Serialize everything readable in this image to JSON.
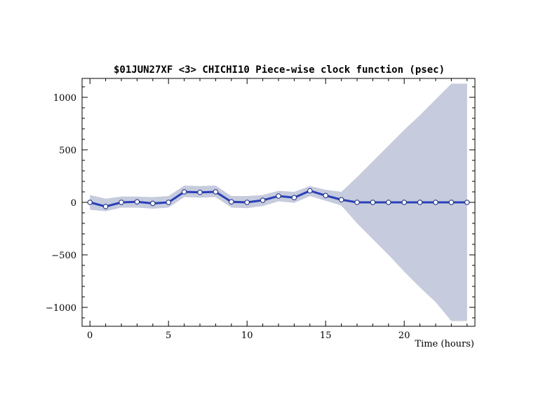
{
  "chart_data": {
    "type": "line",
    "title": "$01JUN27XF <3>  CHICHI10  Piece-wise clock function (psec)",
    "xlabel": "Time (hours)",
    "ylabel": "",
    "xlim": [
      -0.5,
      24.5
    ],
    "ylim": [
      -1180,
      1180
    ],
    "x_ticks": [
      0,
      5,
      10,
      15,
      20
    ],
    "y_ticks": [
      -1000,
      -500,
      0,
      500,
      1000
    ],
    "x_ticks_labels": [
      "0",
      "5",
      "10",
      "15",
      "20"
    ],
    "y_ticks_labels": [
      "−1000",
      "−500",
      "0",
      "500",
      "1000"
    ],
    "grid": false,
    "legend": "none",
    "colors": {
      "line": "#2a40b8",
      "band": "#c6cbdd",
      "marker_fill": "#ffffff"
    },
    "series": [
      {
        "x": [
          0,
          1,
          2,
          3,
          4,
          5,
          6,
          7,
          8,
          9,
          10,
          11,
          12,
          13,
          14,
          15,
          16,
          17,
          18,
          19,
          20,
          21,
          22,
          23,
          24
        ],
        "y": [
          0,
          -40,
          0,
          5,
          -10,
          0,
          100,
          95,
          100,
          5,
          0,
          20,
          60,
          45,
          110,
          65,
          25,
          0,
          0,
          0,
          0,
          0,
          0,
          0,
          0
        ],
        "band_upper": [
          70,
          35,
          55,
          55,
          50,
          60,
          160,
          155,
          160,
          60,
          60,
          70,
          110,
          100,
          155,
          120,
          100,
          240,
          390,
          540,
          690,
          830,
          980,
          1130,
          1130
        ],
        "band_lower": [
          -70,
          -85,
          -50,
          -50,
          -60,
          -50,
          50,
          45,
          50,
          -50,
          -55,
          -35,
          10,
          -5,
          60,
          15,
          -30,
          -200,
          -350,
          -500,
          -660,
          -810,
          -950,
          -1130,
          -1130
        ]
      }
    ]
  }
}
